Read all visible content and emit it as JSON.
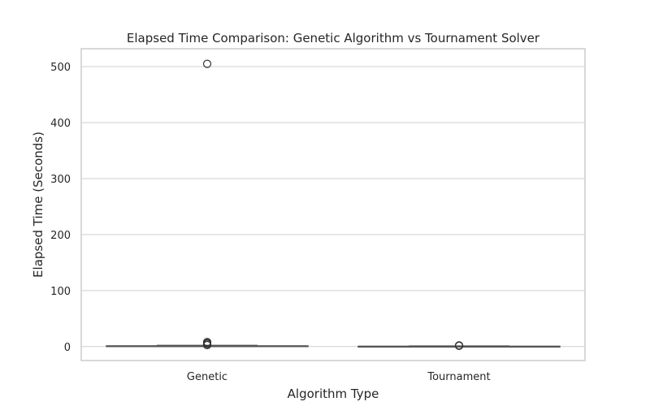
{
  "chart_data": {
    "type": "box",
    "title": "Elapsed Time Comparison: Genetic Algorithm vs Tournament Solver",
    "xlabel": "Algorithm Type",
    "ylabel": "Elapsed Time (Seconds)",
    "categories": [
      "Genetic",
      "Tournament"
    ],
    "yticks": [
      0,
      100,
      200,
      300,
      400,
      500
    ],
    "ylim": [
      -25,
      532
    ],
    "grid": "horizontal",
    "colors": {
      "box_line": "#555555",
      "grid": "#cfcfcf",
      "text": "#262626"
    },
    "boxes": [
      {
        "category": "Genetic",
        "whisker_low": 0.0,
        "q1": 0.5,
        "median": 0.8,
        "q3": 1.2,
        "whisker_high": 2.0,
        "outliers": [
          505,
          8,
          6,
          5,
          3,
          2.5
        ]
      },
      {
        "category": "Tournament",
        "whisker_low": 0.0,
        "q1": 0.1,
        "median": 0.2,
        "q3": 0.4,
        "whisker_high": 1.0,
        "outliers": [
          2.0,
          1.6,
          1.2
        ]
      }
    ]
  }
}
